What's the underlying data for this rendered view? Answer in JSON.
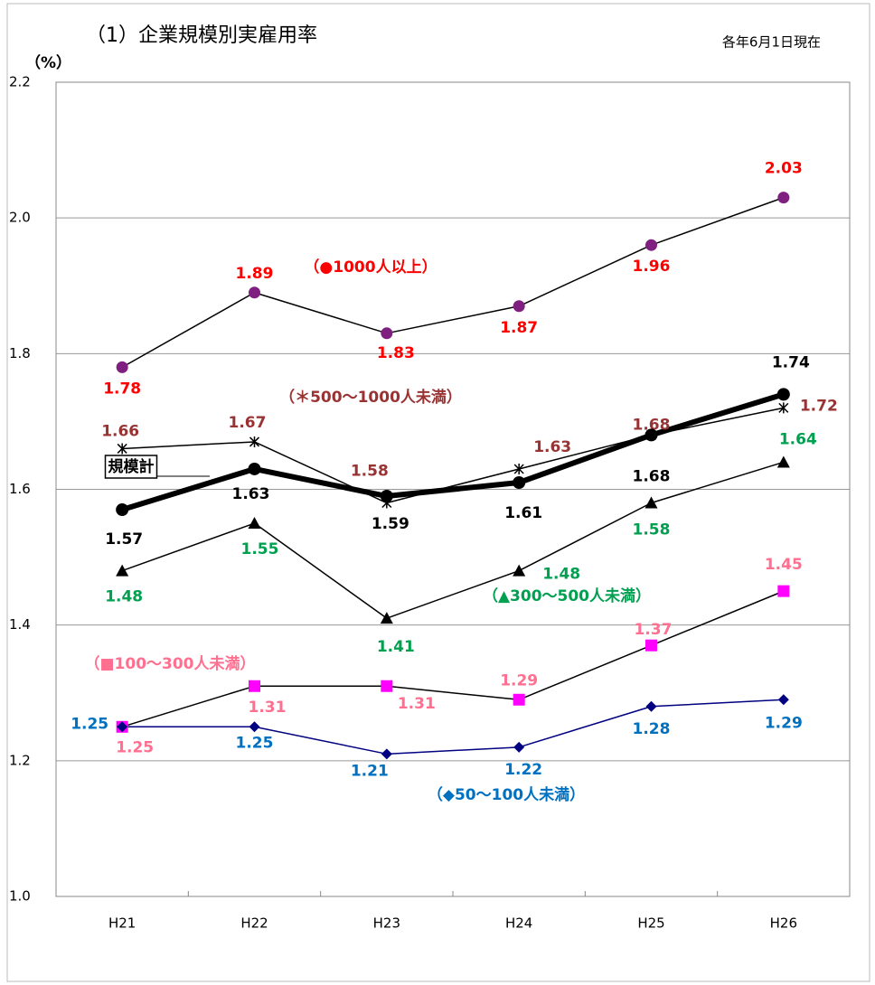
{
  "chart_data": {
    "type": "line",
    "title": "（1）企業規模別実雇用率",
    "subtitle": "各年6月1日現在",
    "y_label": "（%）",
    "categories": [
      "H21",
      "H22",
      "H23",
      "H24",
      "H25",
      "H26"
    ],
    "ylim": [
      1.0,
      2.2
    ],
    "yticks": [
      {
        "value": 1.0,
        "label": "1.0"
      },
      1.2,
      1.4,
      1.6,
      1.8,
      {
        "value": 2.0,
        "label": "2.0"
      },
      2.2
    ],
    "grid": true,
    "series": [
      {
        "name": "（●1000人以上）",
        "color": "#000000",
        "line_width": 1.5,
        "marker": "circle",
        "marker_color": "#7f1f7f",
        "label_color": "#ff0000",
        "values": [
          1.78,
          1.89,
          1.83,
          1.87,
          1.96,
          2.03
        ]
      },
      {
        "name": "（＊500～1000人未満）",
        "color": "#000000",
        "line_width": 1.5,
        "marker": "asterisk",
        "marker_color": "#000000",
        "label_color": "#993333",
        "values": [
          1.66,
          1.67,
          1.58,
          1.63,
          1.68,
          1.72
        ]
      },
      {
        "name": "規模計",
        "color": "#000000",
        "line_width": 6,
        "marker": "circle",
        "marker_color": "#000000",
        "label_color": "#000000",
        "values": [
          1.57,
          1.63,
          1.59,
          1.61,
          1.68,
          1.74
        ]
      },
      {
        "name": "（▲300～500人未満）",
        "color": "#000000",
        "line_width": 1.5,
        "marker": "triangle",
        "marker_color": "#000000",
        "label_color": "#00a050",
        "values": [
          1.48,
          1.55,
          1.41,
          1.48,
          1.58,
          1.64
        ]
      },
      {
        "name": "（■100～300人未満）",
        "color": "#000000",
        "line_width": 1.5,
        "marker": "square",
        "marker_color": "#ff00ff",
        "label_color": "#ff6f8f",
        "values": [
          1.25,
          1.31,
          1.31,
          1.29,
          1.37,
          1.45
        ]
      },
      {
        "name": "（◆50～100人未満）",
        "color": "#000080",
        "line_width": 1.5,
        "marker": "diamond",
        "marker_color": "#000080",
        "label_color": "#0070c0",
        "values": [
          1.25,
          1.25,
          1.21,
          1.22,
          1.28,
          1.29
        ]
      }
    ]
  }
}
